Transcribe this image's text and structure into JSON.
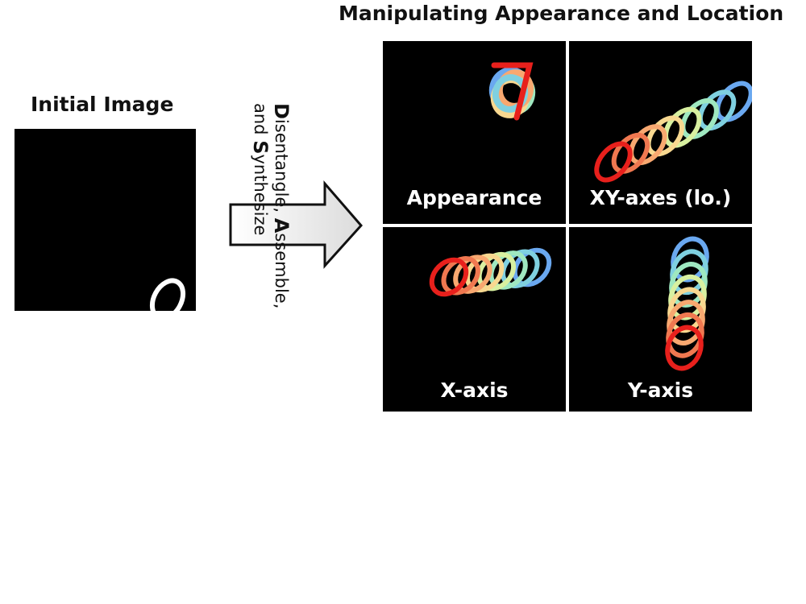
{
  "titles": {
    "main": "Manipulating Appearance and Location",
    "initial": "Initial Image"
  },
  "process": {
    "line1_cap1": "D",
    "line1_rest1": "isentangle, ",
    "line1_cap2": "A",
    "line1_rest2": "ssemble,",
    "line2_rest1": "and ",
    "line2_cap1": "S",
    "line2_rest2": "ynthesize"
  },
  "panels": [
    {
      "label": "Appearance"
    },
    {
      "label": "XY-axes (lo.)"
    },
    {
      "label": "X-axis"
    },
    {
      "label": "Y-axis"
    }
  ],
  "colors": {
    "panel_bg": "#000000",
    "digit": "#ffffff",
    "sweep_start": "#e8201c",
    "sweep_end": "#6aa8f0"
  }
}
